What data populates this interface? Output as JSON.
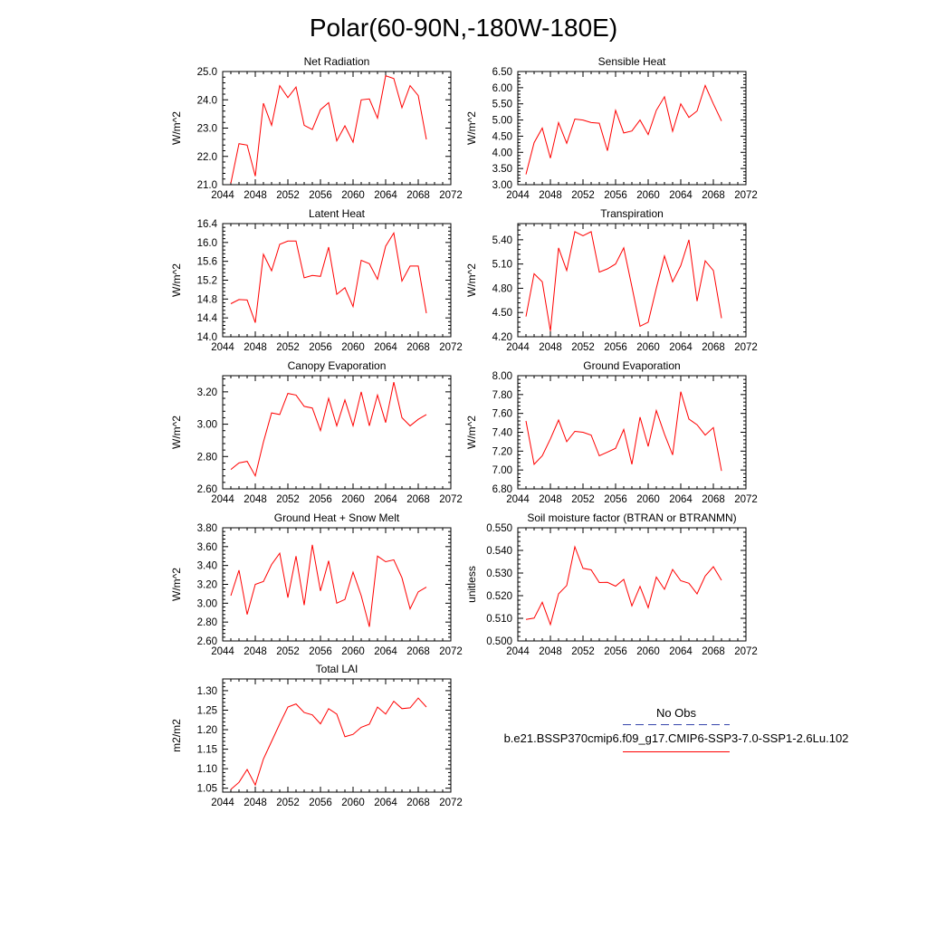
{
  "figure_title": "Polar(60-90N,-180W-180E)",
  "legend": {
    "obs_label": "No Obs",
    "obs_color": "#3344aa",
    "case_label": "b.e21.BSSP370cmip6.f09_g17.CMIP6-SSP3-7.0-SSP1-2.6Lu.102",
    "case_color": "#ff0000"
  },
  "chart_data": [
    {
      "type": "line",
      "title": "Net Radiation",
      "ylabel": "W/m^2",
      "xlim": [
        2044,
        2072
      ],
      "xticks": [
        "2044",
        "2048",
        "2052",
        "2056",
        "2060",
        "2064",
        "2068",
        "2072"
      ],
      "ylim": [
        21.0,
        25.0
      ],
      "yticks": [
        "21.0",
        "22.0",
        "23.0",
        "24.0",
        "25.0"
      ],
      "grid": false,
      "color": "#ff0000",
      "x": [
        2045,
        2046,
        2047,
        2048,
        2049,
        2050,
        2051,
        2052,
        2053,
        2054,
        2055,
        2056,
        2057,
        2058,
        2059,
        2060,
        2061,
        2062,
        2063,
        2064,
        2065,
        2066,
        2067,
        2068,
        2069
      ],
      "y": [
        21.05,
        22.45,
        22.4,
        21.3,
        23.88,
        23.1,
        24.5,
        24.08,
        24.45,
        23.1,
        22.95,
        23.65,
        23.9,
        22.55,
        23.08,
        22.5,
        24.0,
        24.03,
        23.35,
        24.85,
        24.75,
        23.72,
        24.5,
        24.15,
        22.6
      ]
    },
    {
      "type": "line",
      "title": "Sensible Heat",
      "ylabel": "W/m^2",
      "xlim": [
        2044,
        2072
      ],
      "xticks": [
        "2044",
        "2048",
        "2052",
        "2056",
        "2060",
        "2064",
        "2068",
        "2072"
      ],
      "ylim": [
        3.0,
        6.5
      ],
      "yticks": [
        "3.00",
        "3.50",
        "4.00",
        "4.50",
        "5.00",
        "5.50",
        "6.00",
        "6.50"
      ],
      "grid": false,
      "color": "#ff0000",
      "x": [
        2045,
        2046,
        2047,
        2048,
        2049,
        2050,
        2051,
        2052,
        2053,
        2054,
        2055,
        2056,
        2057,
        2058,
        2059,
        2060,
        2061,
        2062,
        2063,
        2064,
        2065,
        2066,
        2067,
        2068,
        2069
      ],
      "y": [
        3.32,
        4.3,
        4.75,
        3.82,
        4.92,
        4.28,
        5.03,
        5.0,
        4.92,
        4.9,
        4.05,
        5.3,
        4.6,
        4.66,
        5.0,
        4.55,
        5.3,
        5.72,
        4.65,
        5.5,
        5.08,
        5.28,
        6.07,
        5.5,
        4.97
      ]
    },
    {
      "type": "line",
      "title": "Latent Heat",
      "ylabel": "W/m^2",
      "xlim": [
        2044,
        2072
      ],
      "xticks": [
        "2044",
        "2048",
        "2052",
        "2056",
        "2060",
        "2064",
        "2068",
        "2072"
      ],
      "ylim": [
        14.0,
        16.4
      ],
      "yticks": [
        "14.0",
        "14.4",
        "14.8",
        "15.2",
        "15.6",
        "16.0",
        "16.4"
      ],
      "grid": false,
      "color": "#ff0000",
      "x": [
        2045,
        2046,
        2047,
        2048,
        2049,
        2050,
        2051,
        2052,
        2053,
        2054,
        2055,
        2056,
        2057,
        2058,
        2059,
        2060,
        2061,
        2062,
        2063,
        2064,
        2065,
        2066,
        2067,
        2068,
        2069
      ],
      "y": [
        14.7,
        14.79,
        14.78,
        14.3,
        15.75,
        15.4,
        15.96,
        16.03,
        16.03,
        15.25,
        15.3,
        15.28,
        15.9,
        14.9,
        15.04,
        14.64,
        15.62,
        15.55,
        15.22,
        15.92,
        16.2,
        15.18,
        15.5,
        15.5,
        14.5
      ]
    },
    {
      "type": "line",
      "title": "Transpiration",
      "ylabel": "W/m^2",
      "xlim": [
        2044,
        2072
      ],
      "xticks": [
        "2044",
        "2048",
        "2052",
        "2056",
        "2060",
        "2064",
        "2068",
        "2072"
      ],
      "ylim": [
        4.2,
        5.6
      ],
      "yticks": [
        "4.20",
        "4.50",
        "4.80",
        "5.10",
        "5.40"
      ],
      "grid": false,
      "color": "#ff0000",
      "x": [
        2045,
        2046,
        2047,
        2048,
        2049,
        2050,
        2051,
        2052,
        2053,
        2054,
        2055,
        2056,
        2057,
        2058,
        2059,
        2060,
        2061,
        2062,
        2063,
        2064,
        2065,
        2066,
        2067,
        2068,
        2069
      ],
      "y": [
        4.45,
        4.98,
        4.88,
        4.27,
        5.3,
        5.02,
        5.5,
        5.45,
        5.5,
        5.0,
        5.04,
        5.1,
        5.3,
        4.82,
        4.33,
        4.38,
        4.8,
        5.2,
        4.88,
        5.08,
        5.4,
        4.64,
        5.14,
        5.02,
        4.43
      ]
    },
    {
      "type": "line",
      "title": "Canopy Evaporation",
      "ylabel": "W/m^2",
      "xlim": [
        2044,
        2072
      ],
      "xticks": [
        "2044",
        "2048",
        "2052",
        "2056",
        "2060",
        "2064",
        "2068",
        "2072"
      ],
      "ylim": [
        2.6,
        3.3
      ],
      "yticks": [
        "2.60",
        "2.80",
        "3.00",
        "3.20"
      ],
      "grid": false,
      "color": "#ff0000",
      "x": [
        2045,
        2046,
        2047,
        2048,
        2049,
        2050,
        2051,
        2052,
        2053,
        2054,
        2055,
        2056,
        2057,
        2058,
        2059,
        2060,
        2061,
        2062,
        2063,
        2064,
        2065,
        2066,
        2067,
        2068,
        2069
      ],
      "y": [
        2.72,
        2.76,
        2.77,
        2.68,
        2.89,
        3.07,
        3.06,
        3.19,
        3.18,
        3.11,
        3.1,
        2.96,
        3.16,
        2.99,
        3.15,
        2.99,
        3.2,
        2.99,
        3.18,
        3.01,
        3.26,
        3.04,
        2.99,
        3.03,
        3.06
      ]
    },
    {
      "type": "line",
      "title": "Ground Evaporation",
      "ylabel": "W/m^2",
      "xlim": [
        2044,
        2072
      ],
      "xticks": [
        "2044",
        "2048",
        "2052",
        "2056",
        "2060",
        "2064",
        "2068",
        "2072"
      ],
      "ylim": [
        6.8,
        8.0
      ],
      "yticks": [
        "6.80",
        "7.00",
        "7.20",
        "7.40",
        "7.60",
        "7.80",
        "8.00"
      ],
      "grid": false,
      "color": "#ff0000",
      "x": [
        2045,
        2046,
        2047,
        2048,
        2049,
        2050,
        2051,
        2052,
        2053,
        2054,
        2055,
        2056,
        2057,
        2058,
        2059,
        2060,
        2061,
        2062,
        2063,
        2064,
        2065,
        2066,
        2067,
        2068,
        2069
      ],
      "y": [
        7.52,
        7.06,
        7.15,
        7.33,
        7.53,
        7.3,
        7.41,
        7.4,
        7.37,
        7.15,
        7.19,
        7.23,
        7.43,
        7.06,
        7.56,
        7.25,
        7.63,
        7.38,
        7.16,
        7.83,
        7.54,
        7.48,
        7.37,
        7.45,
        6.99
      ]
    },
    {
      "type": "line",
      "title": "Ground Heat + Snow Melt",
      "ylabel": "W/m^2",
      "xlim": [
        2044,
        2072
      ],
      "xticks": [
        "2044",
        "2048",
        "2052",
        "2056",
        "2060",
        "2064",
        "2068",
        "2072"
      ],
      "ylim": [
        2.6,
        3.8
      ],
      "yticks": [
        "2.60",
        "2.80",
        "3.00",
        "3.20",
        "3.40",
        "3.60",
        "3.80"
      ],
      "grid": false,
      "color": "#ff0000",
      "x": [
        2045,
        2046,
        2047,
        2048,
        2049,
        2050,
        2051,
        2052,
        2053,
        2054,
        2055,
        2056,
        2057,
        2058,
        2059,
        2060,
        2061,
        2062,
        2063,
        2064,
        2065,
        2066,
        2067,
        2068,
        2069
      ],
      "y": [
        3.08,
        3.35,
        2.88,
        3.2,
        3.23,
        3.41,
        3.53,
        3.06,
        3.5,
        2.98,
        3.62,
        3.13,
        3.45,
        3.0,
        3.04,
        3.33,
        3.08,
        2.75,
        3.5,
        3.44,
        3.46,
        3.27,
        2.94,
        3.12,
        3.17
      ]
    },
    {
      "type": "line",
      "title": "Soil moisture factor (BTRAN or BTRANMN)",
      "ylabel": "unitless",
      "xlim": [
        2044,
        2072
      ],
      "xticks": [
        "2044",
        "2048",
        "2052",
        "2056",
        "2060",
        "2064",
        "2068",
        "2072"
      ],
      "ylim": [
        0.5,
        0.55
      ],
      "yticks": [
        "0.500",
        "0.510",
        "0.520",
        "0.530",
        "0.540",
        "0.550"
      ],
      "grid": false,
      "color": "#ff0000",
      "x": [
        2045,
        2046,
        2047,
        2048,
        2049,
        2050,
        2051,
        2052,
        2053,
        2054,
        2055,
        2056,
        2057,
        2058,
        2059,
        2060,
        2061,
        2062,
        2063,
        2064,
        2065,
        2066,
        2067,
        2068,
        2069
      ],
      "y": [
        0.5095,
        0.5101,
        0.5171,
        0.5072,
        0.5208,
        0.5245,
        0.5416,
        0.5321,
        0.5314,
        0.5258,
        0.5259,
        0.5242,
        0.5272,
        0.5155,
        0.5241,
        0.5147,
        0.5282,
        0.5228,
        0.5316,
        0.5266,
        0.5255,
        0.5208,
        0.5287,
        0.5328,
        0.5268
      ]
    },
    {
      "type": "line",
      "title": "Total LAI",
      "ylabel": "m2/m2",
      "xlim": [
        2044,
        2072
      ],
      "xticks": [
        "2044",
        "2048",
        "2052",
        "2056",
        "2060",
        "2064",
        "2068",
        "2072"
      ],
      "ylim": [
        1.04,
        1.33
      ],
      "yticks": [
        "1.05",
        "1.10",
        "1.15",
        "1.20",
        "1.25",
        "1.30"
      ],
      "grid": false,
      "color": "#ff0000",
      "x": [
        2045,
        2046,
        2047,
        2048,
        2049,
        2050,
        2051,
        2052,
        2053,
        2054,
        2055,
        2056,
        2057,
        2058,
        2059,
        2060,
        2061,
        2062,
        2063,
        2064,
        2065,
        2066,
        2067,
        2068,
        2069
      ],
      "y": [
        1.047,
        1.065,
        1.098,
        1.058,
        1.125,
        1.17,
        1.215,
        1.258,
        1.266,
        1.244,
        1.238,
        1.215,
        1.254,
        1.24,
        1.182,
        1.188,
        1.206,
        1.214,
        1.258,
        1.24,
        1.273,
        1.254,
        1.256,
        1.281,
        1.258
      ]
    }
  ]
}
